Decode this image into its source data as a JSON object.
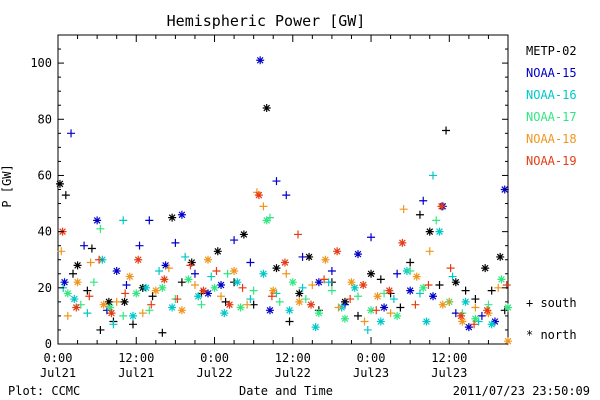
{
  "chart_data": {
    "type": "scatter",
    "title": "Hemispheric Power [GW]",
    "ylabel": "P [GW]",
    "xlabel": "Date and Time",
    "ylim": [
      0,
      110
    ],
    "yticks": [
      0,
      20,
      40,
      60,
      80,
      100
    ],
    "xlim_hours": [
      0,
      69
    ],
    "xticks": [
      {
        "hour": 0,
        "line1": "0:00",
        "line2": "Jul21"
      },
      {
        "hour": 12,
        "line1": "12:00",
        "line2": "Jul21"
      },
      {
        "hour": 24,
        "line1": "0:00",
        "line2": "Jul22"
      },
      {
        "hour": 36,
        "line1": "12:00",
        "line2": "Jul22"
      },
      {
        "hour": 48,
        "line1": "0:00",
        "line2": "Jul23"
      },
      {
        "hour": 60,
        "line1": "12:00",
        "line2": "Jul23"
      }
    ],
    "footer_left": "Plot: CCMC",
    "footer_right": "2011/07/23 23:50:09",
    "symbol_legend": [
      {
        "marker": "+",
        "label": "south"
      },
      {
        "marker": "*",
        "label": "north"
      }
    ],
    "series": [
      {
        "name": "METP-02",
        "color": "#000000",
        "points": [
          [
            0.3,
            57,
            "n"
          ],
          [
            1.2,
            53,
            "s"
          ],
          [
            2.3,
            25,
            "s"
          ],
          [
            3.0,
            28,
            "n"
          ],
          [
            4.5,
            19,
            "s"
          ],
          [
            5.2,
            34,
            "s"
          ],
          [
            6.5,
            5,
            "s"
          ],
          [
            7.8,
            15,
            "n"
          ],
          [
            8.5,
            8,
            "s"
          ],
          [
            10.2,
            15,
            "n"
          ],
          [
            11.5,
            7,
            "s"
          ],
          [
            13,
            20,
            "n"
          ],
          [
            14.5,
            17,
            "s"
          ],
          [
            16,
            4,
            "s"
          ],
          [
            17.5,
            45,
            "n"
          ],
          [
            19,
            22,
            "s"
          ],
          [
            20.5,
            29,
            "n"
          ],
          [
            22,
            18,
            "s"
          ],
          [
            24.5,
            33,
            "n"
          ],
          [
            25.7,
            15,
            "s"
          ],
          [
            27,
            22,
            "s"
          ],
          [
            28.5,
            39,
            "n"
          ],
          [
            30,
            14,
            "s"
          ],
          [
            32,
            84,
            "n"
          ],
          [
            33.5,
            27,
            "n"
          ],
          [
            35.5,
            8,
            "s"
          ],
          [
            37,
            18,
            "n"
          ],
          [
            38.5,
            31,
            "n"
          ],
          [
            40,
            12,
            "s"
          ],
          [
            42,
            22,
            "s"
          ],
          [
            44,
            15,
            "n"
          ],
          [
            46,
            10,
            "s"
          ],
          [
            48,
            25,
            "n"
          ],
          [
            49.5,
            23,
            "s"
          ],
          [
            51,
            18,
            "s"
          ],
          [
            52.5,
            13,
            "s"
          ],
          [
            54,
            29,
            "s"
          ],
          [
            55.5,
            46,
            "s"
          ],
          [
            57,
            40,
            "n"
          ],
          [
            58.5,
            21,
            "s"
          ],
          [
            59.5,
            76,
            "s"
          ],
          [
            61,
            22,
            "n"
          ],
          [
            62.5,
            19,
            "s"
          ],
          [
            64,
            16,
            "s"
          ],
          [
            65.5,
            27,
            "n"
          ],
          [
            66.5,
            19,
            "s"
          ],
          [
            67.8,
            31,
            "n"
          ],
          [
            68.5,
            12,
            "s"
          ]
        ]
      },
      {
        "name": "NOAA-15",
        "color": "#0000c8",
        "points": [
          [
            1,
            22,
            "n"
          ],
          [
            2,
            75,
            "s"
          ],
          [
            4,
            35,
            "s"
          ],
          [
            6,
            44,
            "n"
          ],
          [
            7.5,
            12,
            "s"
          ],
          [
            9,
            26,
            "n"
          ],
          [
            10.5,
            21,
            "s"
          ],
          [
            12.5,
            35,
            "s"
          ],
          [
            14,
            44,
            "s"
          ],
          [
            16.5,
            28,
            "n"
          ],
          [
            18,
            36,
            "s"
          ],
          [
            19,
            46,
            "n"
          ],
          [
            21,
            25,
            "s"
          ],
          [
            23,
            18,
            "n"
          ],
          [
            25,
            21,
            "n"
          ],
          [
            27,
            37,
            "s"
          ],
          [
            29.5,
            29,
            "s"
          ],
          [
            31,
            101,
            "n"
          ],
          [
            32.5,
            12,
            "n"
          ],
          [
            33.5,
            58,
            "s"
          ],
          [
            35,
            53,
            "s"
          ],
          [
            37.5,
            31,
            "s"
          ],
          [
            40,
            22,
            "n"
          ],
          [
            42,
            26,
            "s"
          ],
          [
            44,
            14,
            "s"
          ],
          [
            46,
            32,
            "n"
          ],
          [
            48,
            38,
            "s"
          ],
          [
            50,
            13,
            "n"
          ],
          [
            52,
            25,
            "s"
          ],
          [
            54,
            19,
            "n"
          ],
          [
            56,
            51,
            "s"
          ],
          [
            57.5,
            17,
            "n"
          ],
          [
            59,
            49,
            "n"
          ],
          [
            61,
            11,
            "s"
          ],
          [
            63,
            6,
            "n"
          ],
          [
            65,
            10,
            "s"
          ],
          [
            67,
            8,
            "n"
          ],
          [
            68.5,
            55,
            "n"
          ]
        ]
      },
      {
        "name": "NOAA-16",
        "color": "#00c8c8",
        "points": [
          [
            0.8,
            20,
            "s"
          ],
          [
            2.5,
            16,
            "n"
          ],
          [
            4.5,
            11,
            "s"
          ],
          [
            6.8,
            30,
            "n"
          ],
          [
            8.5,
            7,
            "s"
          ],
          [
            10,
            44,
            "s"
          ],
          [
            11.5,
            10,
            "n"
          ],
          [
            13.5,
            20,
            "n"
          ],
          [
            15.5,
            26,
            "s"
          ],
          [
            17.5,
            13,
            "n"
          ],
          [
            19.5,
            31,
            "s"
          ],
          [
            21.5,
            17,
            "n"
          ],
          [
            23.5,
            24,
            "s"
          ],
          [
            25.5,
            11,
            "n"
          ],
          [
            27.5,
            22,
            "n"
          ],
          [
            29.5,
            16,
            "s"
          ],
          [
            31.5,
            25,
            "n"
          ],
          [
            33.5,
            18,
            "s"
          ],
          [
            35.5,
            12,
            "n"
          ],
          [
            37.5,
            20,
            "s"
          ],
          [
            39.5,
            6,
            "n"
          ],
          [
            41.5,
            22,
            "s"
          ],
          [
            43.5,
            13,
            "n"
          ],
          [
            45.5,
            20,
            "n"
          ],
          [
            47.5,
            5,
            "s"
          ],
          [
            49.5,
            8,
            "n"
          ],
          [
            51.5,
            16,
            "s"
          ],
          [
            53.5,
            26,
            "n"
          ],
          [
            55.5,
            18,
            "s"
          ],
          [
            56.5,
            8,
            "n"
          ],
          [
            57.5,
            60,
            "s"
          ],
          [
            58.5,
            40,
            "n"
          ],
          [
            60.5,
            24,
            "s"
          ],
          [
            62.5,
            15,
            "n"
          ],
          [
            64.5,
            8,
            "s"
          ],
          [
            66.5,
            7,
            "n"
          ]
        ]
      },
      {
        "name": "NOAA-17",
        "color": "#32e682",
        "points": [
          [
            1.5,
            18,
            "n"
          ],
          [
            3.5,
            14,
            "s"
          ],
          [
            5.5,
            22,
            "s"
          ],
          [
            6.5,
            41,
            "s"
          ],
          [
            8,
            13,
            "n"
          ],
          [
            10,
            10,
            "s"
          ],
          [
            12,
            18,
            "n"
          ],
          [
            14,
            12,
            "s"
          ],
          [
            16,
            20,
            "n"
          ],
          [
            18,
            16,
            "s"
          ],
          [
            20,
            23,
            "n"
          ],
          [
            22,
            14,
            "s"
          ],
          [
            24,
            20,
            "n"
          ],
          [
            26,
            25,
            "s"
          ],
          [
            28,
            13,
            "n"
          ],
          [
            30,
            19,
            "s"
          ],
          [
            32,
            44,
            "n"
          ],
          [
            32.5,
            45,
            "s"
          ],
          [
            34,
            15,
            "s"
          ],
          [
            36,
            22,
            "n"
          ],
          [
            38,
            16,
            "s"
          ],
          [
            40,
            11,
            "n"
          ],
          [
            42,
            19,
            "s"
          ],
          [
            44,
            9,
            "n"
          ],
          [
            46,
            17,
            "s"
          ],
          [
            48,
            12,
            "n"
          ],
          [
            50,
            18,
            "s"
          ],
          [
            52,
            10,
            "n"
          ],
          [
            54,
            26,
            "s"
          ],
          [
            56,
            20,
            "n"
          ],
          [
            58,
            44,
            "s"
          ],
          [
            60,
            15,
            "n"
          ],
          [
            62,
            11,
            "s"
          ],
          [
            64,
            9,
            "n"
          ],
          [
            66,
            14,
            "s"
          ],
          [
            68,
            23,
            "n"
          ],
          [
            69,
            13,
            "n"
          ]
        ]
      },
      {
        "name": "NOAA-18",
        "color": "#f0961e",
        "points": [
          [
            0.5,
            33,
            "s"
          ],
          [
            1.5,
            10,
            "s"
          ],
          [
            3,
            22,
            "n"
          ],
          [
            5,
            29,
            "s"
          ],
          [
            7,
            14,
            "n"
          ],
          [
            9,
            15,
            "s"
          ],
          [
            11,
            24,
            "n"
          ],
          [
            13,
            11,
            "s"
          ],
          [
            15,
            19,
            "n"
          ],
          [
            17,
            27,
            "s"
          ],
          [
            19,
            12,
            "n"
          ],
          [
            21,
            21,
            "s"
          ],
          [
            23,
            30,
            "n"
          ],
          [
            25,
            17,
            "s"
          ],
          [
            27,
            26,
            "n"
          ],
          [
            29,
            14,
            "s"
          ],
          [
            30.5,
            54,
            "s"
          ],
          [
            31.5,
            49,
            "s"
          ],
          [
            33,
            19,
            "n"
          ],
          [
            35,
            25,
            "s"
          ],
          [
            37,
            15,
            "n"
          ],
          [
            39,
            21,
            "s"
          ],
          [
            41,
            30,
            "n"
          ],
          [
            43,
            13,
            "s"
          ],
          [
            45,
            22,
            "n"
          ],
          [
            47,
            8,
            "s"
          ],
          [
            49,
            17,
            "n"
          ],
          [
            51,
            11,
            "s"
          ],
          [
            53,
            48,
            "s"
          ],
          [
            55,
            24,
            "n"
          ],
          [
            57,
            33,
            "s"
          ],
          [
            59,
            14,
            "n"
          ],
          [
            60,
            15,
            "s"
          ],
          [
            62,
            8,
            "n"
          ],
          [
            64,
            13,
            "s"
          ],
          [
            66,
            11,
            "n"
          ],
          [
            67.5,
            20,
            "s"
          ],
          [
            69,
            1,
            "n"
          ]
        ]
      },
      {
        "name": "NOAA-19",
        "color": "#e63c14",
        "points": [
          [
            0.7,
            40,
            "n"
          ],
          [
            2.8,
            13,
            "n"
          ],
          [
            4.8,
            17,
            "s"
          ],
          [
            6.3,
            30,
            "s"
          ],
          [
            8.2,
            11,
            "n"
          ],
          [
            10.3,
            18,
            "s"
          ],
          [
            12.3,
            30,
            "n"
          ],
          [
            14.3,
            14,
            "s"
          ],
          [
            16.3,
            23,
            "n"
          ],
          [
            18.3,
            16,
            "s"
          ],
          [
            20.3,
            28,
            "s"
          ],
          [
            22.3,
            19,
            "n"
          ],
          [
            24.3,
            26,
            "s"
          ],
          [
            26.3,
            14,
            "n"
          ],
          [
            28.3,
            20,
            "s"
          ],
          [
            30.8,
            53,
            "n"
          ],
          [
            32.8,
            17,
            "s"
          ],
          [
            34.8,
            29,
            "n"
          ],
          [
            36.8,
            39,
            "s"
          ],
          [
            38.8,
            14,
            "n"
          ],
          [
            40.8,
            23,
            "s"
          ],
          [
            42.8,
            33,
            "n"
          ],
          [
            44.8,
            16,
            "s"
          ],
          [
            46.8,
            21,
            "n"
          ],
          [
            48.8,
            12,
            "s"
          ],
          [
            50.8,
            19,
            "n"
          ],
          [
            52.8,
            36,
            "n"
          ],
          [
            54.8,
            14,
            "s"
          ],
          [
            56.8,
            21,
            "s"
          ],
          [
            58.8,
            49,
            "n"
          ],
          [
            60.2,
            27,
            "s"
          ],
          [
            61.8,
            10,
            "n"
          ],
          [
            63.8,
            7,
            "s"
          ],
          [
            65.8,
            12,
            "n"
          ],
          [
            68.8,
            21,
            "s"
          ]
        ]
      }
    ]
  }
}
